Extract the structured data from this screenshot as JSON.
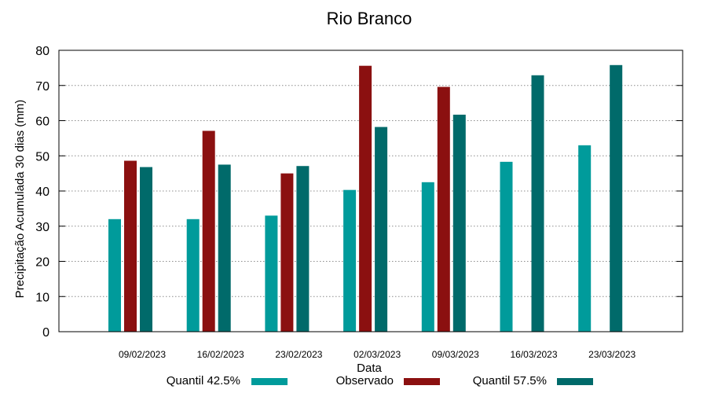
{
  "chart_data": {
    "type": "bar",
    "title": "Rio Branco",
    "xlabel": "Data",
    "ylabel": "Precipitação Acumulada 30 dias (mm)",
    "ylim": [
      0,
      80
    ],
    "yticks": [
      0,
      10,
      20,
      30,
      40,
      50,
      60,
      70,
      80
    ],
    "grid": true,
    "legend_position": "bottom",
    "categories": [
      "09/02/2023",
      "16/02/2023",
      "23/02/2023",
      "02/03/2023",
      "09/03/2023",
      "16/03/2023",
      "23/03/2023"
    ],
    "series": [
      {
        "name": "Quantil 42.5%",
        "color": "#009b9b",
        "values": [
          32,
          32,
          33,
          40.3,
          42.5,
          48.3,
          53
        ]
      },
      {
        "name": "Observado",
        "color": "#8b1010",
        "values": [
          48.6,
          57.1,
          45,
          75.6,
          69.6,
          null,
          null
        ]
      },
      {
        "name": "Quantil 57.5%",
        "color": "#006a6a",
        "values": [
          46.8,
          47.5,
          47.1,
          58.2,
          61.7,
          72.9,
          75.8
        ]
      }
    ]
  }
}
